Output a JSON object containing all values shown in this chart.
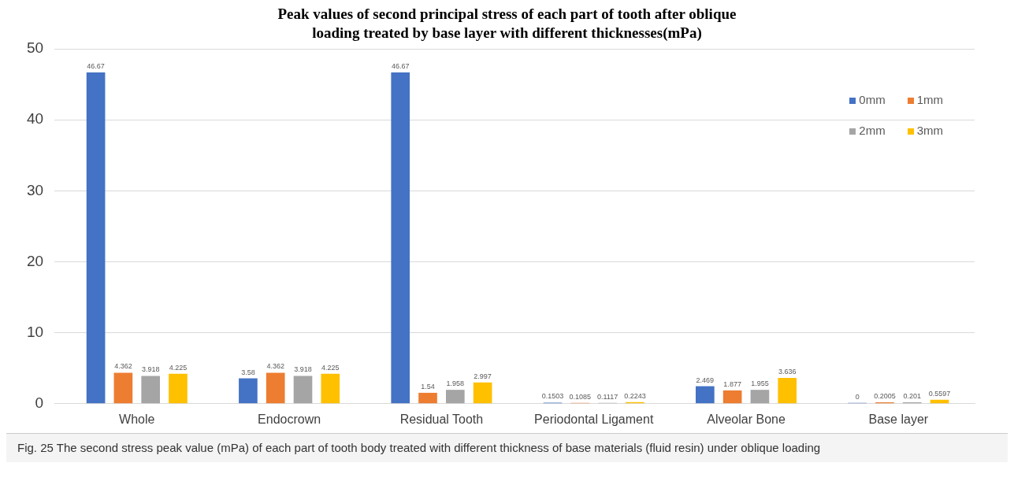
{
  "chart_data": {
    "type": "bar",
    "title": "Peak values of second principal stress of each part of tooth after oblique loading treated by base layer with different thicknesses(mPa)",
    "categories": [
      "Whole",
      "Endocrown",
      "Residual Tooth",
      "Periodontal Ligament",
      "Alveolar Bone",
      "Base layer"
    ],
    "series": [
      {
        "name": "0mm",
        "color": "#4472c4",
        "values": [
          46.67,
          3.58,
          46.67,
          0.1503,
          2.469,
          0
        ]
      },
      {
        "name": "1mm",
        "color": "#ed7d31",
        "values": [
          4.362,
          4.362,
          1.54,
          0.1085,
          1.877,
          0.2005
        ]
      },
      {
        "name": "2mm",
        "color": "#a5a5a5",
        "values": [
          3.918,
          3.918,
          1.958,
          0.1117,
          1.955,
          0.201
        ]
      },
      {
        "name": "3mm",
        "color": "#ffc000",
        "values": [
          4.225,
          4.225,
          2.997,
          0.2243,
          3.636,
          0.5597
        ]
      }
    ],
    "ylim": [
      0,
      50
    ],
    "yticks": [
      0,
      10,
      20,
      30,
      40,
      50
    ],
    "grid": "y",
    "legend": "top right",
    "data_labels": true,
    "annotations": [
      "Fig. 25 The second stress peak value (mPa) of each part of tooth body treated with different thickness of base materials (fluid resin) under oblique loading"
    ]
  }
}
